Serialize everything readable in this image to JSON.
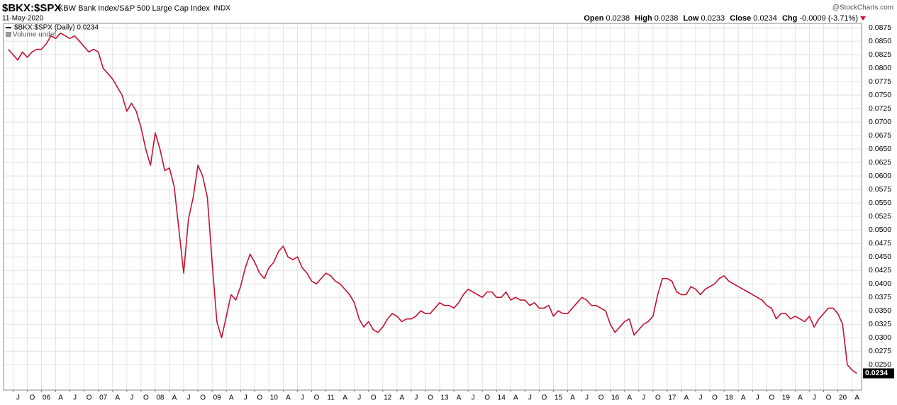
{
  "header": {
    "symbol": "$BKX:$SPX",
    "name": "KBW Bank Index/S&P 500 Large Cap Index",
    "exchange": "INDX",
    "date": "11-May-2020",
    "brand": "@StockCharts.com",
    "quote": {
      "open_label": "Open",
      "open": 0.0238,
      "high_label": "High",
      "high": 0.0238,
      "low_label": "Low",
      "low": 0.0233,
      "close_label": "Close",
      "close": 0.0234,
      "chg_label": "Chg",
      "chg": -0.0009,
      "chg_pct": {
        "value": -3.71,
        "label": "(-3.71%)"
      }
    },
    "volume_label": "Volume undef"
  },
  "chart_data": {
    "type": "line",
    "grid": true,
    "x": [
      "2005-06",
      "2005-07",
      "2005-08",
      "2005-09",
      "2005-10",
      "2005-11",
      "2005-12",
      "2006-01",
      "2006-02",
      "2006-03",
      "2006-04",
      "2006-05",
      "2006-06",
      "2006-07",
      "2006-08",
      "2006-09",
      "2006-10",
      "2006-11",
      "2006-12",
      "2007-01",
      "2007-02",
      "2007-03",
      "2007-04",
      "2007-05",
      "2007-06",
      "2007-07",
      "2007-08",
      "2007-09",
      "2007-10",
      "2007-11",
      "2007-12",
      "2008-01",
      "2008-02",
      "2008-03",
      "2008-04",
      "2008-05",
      "2008-06",
      "2008-07",
      "2008-08",
      "2008-09",
      "2008-10",
      "2008-11",
      "2008-12",
      "2009-01",
      "2009-02",
      "2009-03",
      "2009-04",
      "2009-05",
      "2009-06",
      "2009-07",
      "2009-08",
      "2009-09",
      "2009-10",
      "2009-11",
      "2009-12",
      "2010-01",
      "2010-02",
      "2010-03",
      "2010-04",
      "2010-05",
      "2010-06",
      "2010-07",
      "2010-08",
      "2010-09",
      "2010-10",
      "2010-11",
      "2010-12",
      "2011-01",
      "2011-02",
      "2011-03",
      "2011-04",
      "2011-05",
      "2011-06",
      "2011-07",
      "2011-08",
      "2011-09",
      "2011-10",
      "2011-11",
      "2011-12",
      "2012-01",
      "2012-02",
      "2012-03",
      "2012-04",
      "2012-05",
      "2012-06",
      "2012-07",
      "2012-08",
      "2012-09",
      "2012-10",
      "2012-11",
      "2012-12",
      "2013-01",
      "2013-02",
      "2013-03",
      "2013-04",
      "2013-05",
      "2013-06",
      "2013-07",
      "2013-08",
      "2013-09",
      "2013-10",
      "2013-11",
      "2013-12",
      "2014-01",
      "2014-02",
      "2014-03",
      "2014-04",
      "2014-05",
      "2014-06",
      "2014-07",
      "2014-08",
      "2014-09",
      "2014-10",
      "2014-11",
      "2014-12",
      "2015-01",
      "2015-02",
      "2015-03",
      "2015-04",
      "2015-05",
      "2015-06",
      "2015-07",
      "2015-08",
      "2015-09",
      "2015-10",
      "2015-11",
      "2015-12",
      "2016-01",
      "2016-02",
      "2016-03",
      "2016-04",
      "2016-05",
      "2016-06",
      "2016-07",
      "2016-08",
      "2016-09",
      "2016-10",
      "2016-11",
      "2016-12",
      "2017-01",
      "2017-02",
      "2017-03",
      "2017-04",
      "2017-05",
      "2017-06",
      "2017-07",
      "2017-08",
      "2017-09",
      "2017-10",
      "2017-11",
      "2017-12",
      "2018-01",
      "2018-02",
      "2018-03",
      "2018-04",
      "2018-05",
      "2018-06",
      "2018-07",
      "2018-08",
      "2018-09",
      "2018-10",
      "2018-11",
      "2018-12",
      "2019-01",
      "2019-02",
      "2019-03",
      "2019-04",
      "2019-05",
      "2019-06",
      "2019-07",
      "2019-08",
      "2019-09",
      "2019-10",
      "2019-11",
      "2019-12",
      "2020-01",
      "2020-02",
      "2020-03",
      "2020-04",
      "2020-05"
    ],
    "series": [
      {
        "name": "$BKX:$SPX (Daily) 0.0234",
        "color": "#c4122f",
        "values": [
          0.0835,
          0.0825,
          0.0815,
          0.083,
          0.082,
          0.083,
          0.0835,
          0.0835,
          0.0845,
          0.086,
          0.0855,
          0.0865,
          0.086,
          0.0855,
          0.086,
          0.085,
          0.084,
          0.083,
          0.0835,
          0.083,
          0.08,
          0.079,
          0.078,
          0.0765,
          0.075,
          0.072,
          0.0735,
          0.072,
          0.069,
          0.065,
          0.062,
          0.068,
          0.065,
          0.061,
          0.0615,
          0.058,
          0.05,
          0.042,
          0.052,
          0.056,
          0.062,
          0.06,
          0.056,
          0.044,
          0.033,
          0.03,
          0.034,
          0.038,
          0.037,
          0.0395,
          0.043,
          0.0455,
          0.044,
          0.042,
          0.041,
          0.043,
          0.044,
          0.046,
          0.047,
          0.045,
          0.0445,
          0.045,
          0.043,
          0.042,
          0.0405,
          0.04,
          0.041,
          0.042,
          0.0415,
          0.0405,
          0.04,
          0.039,
          0.038,
          0.0365,
          0.0335,
          0.032,
          0.033,
          0.0315,
          0.031,
          0.032,
          0.0335,
          0.0345,
          0.034,
          0.033,
          0.0335,
          0.0335,
          0.034,
          0.035,
          0.0345,
          0.0345,
          0.0355,
          0.0365,
          0.036,
          0.036,
          0.0355,
          0.0365,
          0.038,
          0.039,
          0.0385,
          0.038,
          0.0375,
          0.0385,
          0.0385,
          0.0375,
          0.0375,
          0.0385,
          0.037,
          0.0375,
          0.037,
          0.037,
          0.036,
          0.0365,
          0.0355,
          0.0355,
          0.036,
          0.034,
          0.035,
          0.0345,
          0.0345,
          0.0355,
          0.0365,
          0.0375,
          0.037,
          0.036,
          0.036,
          0.0355,
          0.035,
          0.0325,
          0.031,
          0.032,
          0.033,
          0.0335,
          0.0305,
          0.0315,
          0.0325,
          0.033,
          0.034,
          0.038,
          0.041,
          0.041,
          0.0405,
          0.0385,
          0.038,
          0.038,
          0.0395,
          0.039,
          0.038,
          0.039,
          0.0395,
          0.04,
          0.041,
          0.0415,
          0.0405,
          0.04,
          0.0395,
          0.039,
          0.0385,
          0.038,
          0.0375,
          0.037,
          0.036,
          0.0355,
          0.0335,
          0.0345,
          0.0345,
          0.0335,
          0.034,
          0.0335,
          0.033,
          0.034,
          0.032,
          0.0335,
          0.0345,
          0.0355,
          0.0355,
          0.0345,
          0.0325,
          0.025,
          0.024,
          0.0234
        ]
      }
    ],
    "xlim": [
      "2005-05",
      "2020-06"
    ],
    "xticks": [
      {
        "value": "2005-07",
        "label": "J"
      },
      {
        "value": "2005-10",
        "label": "O"
      },
      {
        "value": "2006-01",
        "label": "06"
      },
      {
        "value": "2006-04",
        "label": "A"
      },
      {
        "value": "2006-07",
        "label": "J"
      },
      {
        "value": "2006-10",
        "label": "O"
      },
      {
        "value": "2007-01",
        "label": "07"
      },
      {
        "value": "2007-04",
        "label": "A"
      },
      {
        "value": "2007-07",
        "label": "J"
      },
      {
        "value": "2007-10",
        "label": "O"
      },
      {
        "value": "2008-01",
        "label": "08"
      },
      {
        "value": "2008-04",
        "label": "A"
      },
      {
        "value": "2008-07",
        "label": "J"
      },
      {
        "value": "2008-10",
        "label": "O"
      },
      {
        "value": "2009-01",
        "label": "09"
      },
      {
        "value": "2009-04",
        "label": "A"
      },
      {
        "value": "2009-07",
        "label": "J"
      },
      {
        "value": "2009-10",
        "label": "O"
      },
      {
        "value": "2010-01",
        "label": "10"
      },
      {
        "value": "2010-04",
        "label": "A"
      },
      {
        "value": "2010-07",
        "label": "J"
      },
      {
        "value": "2010-10",
        "label": "O"
      },
      {
        "value": "2011-01",
        "label": "11"
      },
      {
        "value": "2011-04",
        "label": "A"
      },
      {
        "value": "2011-07",
        "label": "J"
      },
      {
        "value": "2011-10",
        "label": "O"
      },
      {
        "value": "2012-01",
        "label": "12"
      },
      {
        "value": "2012-04",
        "label": "A"
      },
      {
        "value": "2012-07",
        "label": "J"
      },
      {
        "value": "2012-10",
        "label": "O"
      },
      {
        "value": "2013-01",
        "label": "13"
      },
      {
        "value": "2013-04",
        "label": "A"
      },
      {
        "value": "2013-07",
        "label": "J"
      },
      {
        "value": "2013-10",
        "label": "O"
      },
      {
        "value": "2014-01",
        "label": "14"
      },
      {
        "value": "2014-04",
        "label": "A"
      },
      {
        "value": "2014-07",
        "label": "J"
      },
      {
        "value": "2014-10",
        "label": "O"
      },
      {
        "value": "2015-01",
        "label": "15"
      },
      {
        "value": "2015-04",
        "label": "A"
      },
      {
        "value": "2015-07",
        "label": "J"
      },
      {
        "value": "2015-10",
        "label": "O"
      },
      {
        "value": "2016-01",
        "label": "16"
      },
      {
        "value": "2016-04",
        "label": "A"
      },
      {
        "value": "2016-07",
        "label": "J"
      },
      {
        "value": "2016-10",
        "label": "O"
      },
      {
        "value": "2017-01",
        "label": "17"
      },
      {
        "value": "2017-04",
        "label": "A"
      },
      {
        "value": "2017-07",
        "label": "J"
      },
      {
        "value": "2017-10",
        "label": "O"
      },
      {
        "value": "2018-01",
        "label": "18"
      },
      {
        "value": "2018-04",
        "label": "A"
      },
      {
        "value": "2018-07",
        "label": "J"
      },
      {
        "value": "2018-10",
        "label": "O"
      },
      {
        "value": "2019-01",
        "label": "19"
      },
      {
        "value": "2019-04",
        "label": "A"
      },
      {
        "value": "2019-07",
        "label": "J"
      },
      {
        "value": "2019-10",
        "label": "O"
      },
      {
        "value": "2020-01",
        "label": "20"
      },
      {
        "value": "2020-04",
        "label": "A"
      }
    ],
    "ylim": [
      0.0203,
      0.0883
    ],
    "yticks": [
      {
        "value": 0.025,
        "label": "0.0250"
      },
      {
        "value": 0.0275,
        "label": "0.0275"
      },
      {
        "value": 0.03,
        "label": "0.0300"
      },
      {
        "value": 0.0325,
        "label": "0.0325"
      },
      {
        "value": 0.035,
        "label": "0.0350"
      },
      {
        "value": 0.0375,
        "label": "0.0375"
      },
      {
        "value": 0.04,
        "label": "0.0400"
      },
      {
        "value": 0.0425,
        "label": "0.0425"
      },
      {
        "value": 0.045,
        "label": "0.0450"
      },
      {
        "value": 0.0475,
        "label": "0.0475"
      },
      {
        "value": 0.05,
        "label": "0.0500"
      },
      {
        "value": 0.0525,
        "label": "0.0525"
      },
      {
        "value": 0.055,
        "label": "0.0550"
      },
      {
        "value": 0.0575,
        "label": "0.0575"
      },
      {
        "value": 0.06,
        "label": "0.0600"
      },
      {
        "value": 0.0625,
        "label": "0.0625"
      },
      {
        "value": 0.065,
        "label": "0.0650"
      },
      {
        "value": 0.0675,
        "label": "0.0675"
      },
      {
        "value": 0.07,
        "label": "0.0700"
      },
      {
        "value": 0.0725,
        "label": "0.0725"
      },
      {
        "value": 0.075,
        "label": "0.0750"
      },
      {
        "value": 0.0775,
        "label": "0.0775"
      },
      {
        "value": 0.08,
        "label": "0.0800"
      },
      {
        "value": 0.0825,
        "label": "0.0825"
      },
      {
        "value": 0.085,
        "label": "0.0850"
      },
      {
        "value": 0.0875,
        "label": "0.0875"
      }
    ]
  }
}
